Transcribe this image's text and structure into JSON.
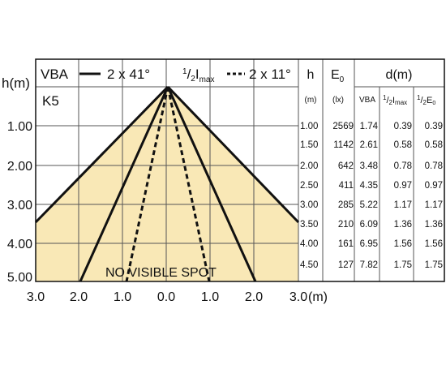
{
  "legend": {
    "solid_label": "VBA",
    "solid_value": "2 x 41°",
    "dotted_num": "1",
    "dotted_den": "2",
    "dotted_base": "I",
    "dotted_sub": "max",
    "dotted_value": "2 x 11°"
  },
  "diagram": {
    "y_axis_label": "h(m)",
    "y_ticks": [
      "1.00",
      "2.00",
      "3.00",
      "4.00",
      "5.00"
    ],
    "x_ticks": [
      "3.0",
      "2.0",
      "1.0",
      "0.0",
      "1.0",
      "2.0",
      "3.0"
    ],
    "x_unit": "(m)",
    "model": "K5",
    "note": "NO VISIBLE SPOT"
  },
  "table": {
    "h": "h",
    "e_base": "E",
    "e_sub": "0",
    "d": "d(m)",
    "h_unit": "(m)",
    "e_unit": "(lx)",
    "vba": "VBA",
    "imax_num": "1",
    "imax_den": "2",
    "imax_base": "I",
    "imax_sub": "max",
    "emax_num": "1",
    "emax_den": "2",
    "emax_base": "E",
    "emax_sub": "0",
    "rows": [
      [
        "1.00",
        "2569",
        "1.74",
        "0.39",
        "0.39"
      ],
      [
        "1.50",
        "1142",
        "2.61",
        "0.58",
        "0.58"
      ],
      [
        "2.00",
        "642",
        "3.48",
        "0.78",
        "0.78"
      ],
      [
        "2.50",
        "411",
        "4.35",
        "0.97",
        "0.97"
      ],
      [
        "3.00",
        "285",
        "5.22",
        "1.17",
        "1.17"
      ],
      [
        "3.50",
        "210",
        "6.09",
        "1.36",
        "1.36"
      ],
      [
        "4.00",
        "161",
        "6.95",
        "1.56",
        "1.56"
      ],
      [
        "4.50",
        "127",
        "7.82",
        "1.75",
        "1.75"
      ]
    ]
  }
}
